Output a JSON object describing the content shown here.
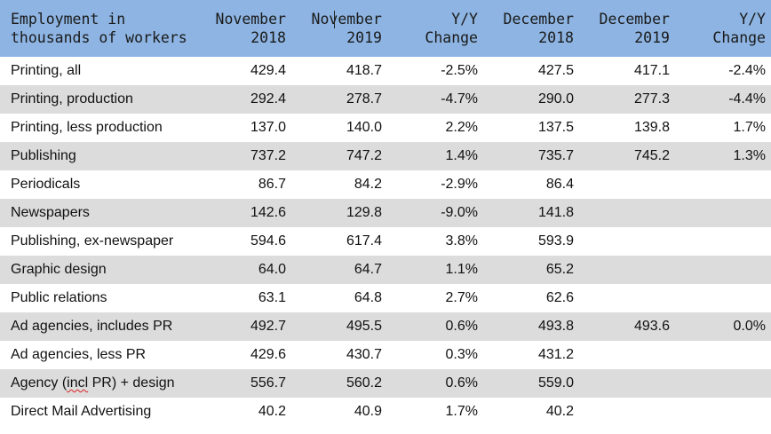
{
  "header": {
    "col0": [
      "Employment in",
      "thousands of workers"
    ],
    "col1": [
      "November",
      "2018"
    ],
    "col2": [
      "November",
      "2019"
    ],
    "col3": [
      "Y/Y",
      "Change"
    ],
    "col4": [
      "December",
      "2018"
    ],
    "col5": [
      "December",
      "2019"
    ],
    "col6": [
      "Y/Y",
      "Change"
    ]
  },
  "rows": [
    {
      "label": "Printing, all",
      "nov2018": "429.4",
      "nov2019": "418.7",
      "yy1": "-2.5%",
      "dec2018": "427.5",
      "dec2019": "417.1",
      "yy2": "-2.4%"
    },
    {
      "label": "Printing, production",
      "nov2018": "292.4",
      "nov2019": "278.7",
      "yy1": "-4.7%",
      "dec2018": "290.0",
      "dec2019": "277.3",
      "yy2": "-4.4%"
    },
    {
      "label": "Printing, less production",
      "nov2018": "137.0",
      "nov2019": "140.0",
      "yy1": "2.2%",
      "dec2018": "137.5",
      "dec2019": "139.8",
      "yy2": "1.7%"
    },
    {
      "label": "Publishing",
      "nov2018": "737.2",
      "nov2019": "747.2",
      "yy1": "1.4%",
      "dec2018": "735.7",
      "dec2019": "745.2",
      "yy2": "1.3%"
    },
    {
      "label": "Periodicals",
      "nov2018": "86.7",
      "nov2019": "84.2",
      "yy1": "-2.9%",
      "dec2018": "86.4",
      "dec2019": "",
      "yy2": ""
    },
    {
      "label": "Newspapers",
      "nov2018": "142.6",
      "nov2019": "129.8",
      "yy1": "-9.0%",
      "dec2018": "141.8",
      "dec2019": "",
      "yy2": ""
    },
    {
      "label": "Publishing, ex-newspaper",
      "nov2018": "594.6",
      "nov2019": "617.4",
      "yy1": "3.8%",
      "dec2018": "593.9",
      "dec2019": "",
      "yy2": ""
    },
    {
      "label": "Graphic design",
      "nov2018": "64.0",
      "nov2019": "64.7",
      "yy1": "1.1%",
      "dec2018": "65.2",
      "dec2019": "",
      "yy2": ""
    },
    {
      "label": "Public relations",
      "nov2018": "63.1",
      "nov2019": "64.8",
      "yy1": "2.7%",
      "dec2018": "62.6",
      "dec2019": "",
      "yy2": ""
    },
    {
      "label": "Ad agencies, includes PR",
      "nov2018": "492.7",
      "nov2019": "495.5",
      "yy1": "0.6%",
      "dec2018": "493.8",
      "dec2019": "493.6",
      "yy2": "0.0%"
    },
    {
      "label": "Ad agencies, less PR",
      "nov2018": "429.6",
      "nov2019": "430.7",
      "yy1": "0.3%",
      "dec2018": "431.2",
      "dec2019": "",
      "yy2": ""
    },
    {
      "label": "Agency (incl PR) + design",
      "nov2018": "556.7",
      "nov2019": "560.2",
      "yy1": "0.6%",
      "dec2018": "559.0",
      "dec2019": "",
      "yy2": ""
    },
    {
      "label": "Direct Mail Advertising",
      "nov2018": "40.2",
      "nov2019": "40.9",
      "yy1": "1.7%",
      "dec2018": "40.2",
      "dec2019": "",
      "yy2": ""
    }
  ]
}
